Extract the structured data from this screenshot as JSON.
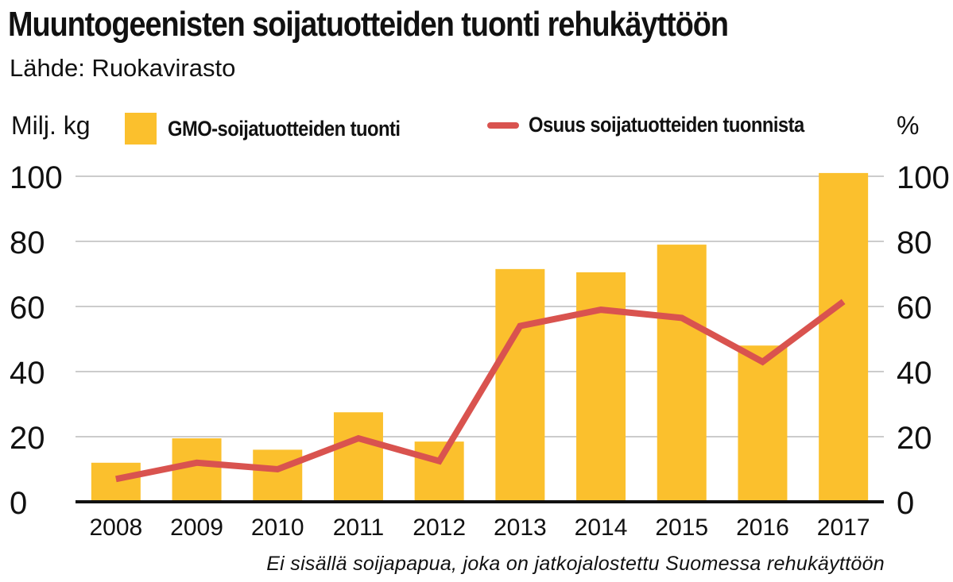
{
  "title": "Muuntogeenisten soijatuotteiden tuonti rehukäyttöön",
  "source": "Lähde: Ruokavirasto",
  "footnote": "Ei sisällä soijapapua, joka on jatkojalostettu Suomessa rehukäyttöön",
  "colors": {
    "bar": "#fbc02d",
    "line": "#d9534f",
    "grid": "#cccccc",
    "axis": "#111111"
  },
  "chart_data": {
    "type": "bar",
    "categories": [
      "2008",
      "2009",
      "2010",
      "2011",
      "2012",
      "2013",
      "2014",
      "2015",
      "2016",
      "2017"
    ],
    "series": [
      {
        "name": "GMO-soijatuotteiden tuonti",
        "type": "bar",
        "axis": "left",
        "values": [
          12,
          19.5,
          16,
          27.5,
          18.5,
          71.5,
          70.5,
          79,
          48,
          101
        ]
      },
      {
        "name": "Osuus soijatuotteiden tuonnista",
        "type": "line",
        "axis": "right",
        "values": [
          7,
          12,
          10,
          19.5,
          12.5,
          54,
          59,
          56.5,
          43,
          61.5
        ]
      }
    ],
    "ylabel_left": "Milj. kg",
    "ylabel_right": "%",
    "ylim": [
      0,
      100
    ],
    "yticks": [
      "0",
      "20",
      "40",
      "60",
      "80",
      "100"
    ],
    "grid": true,
    "legend_position": "top"
  }
}
